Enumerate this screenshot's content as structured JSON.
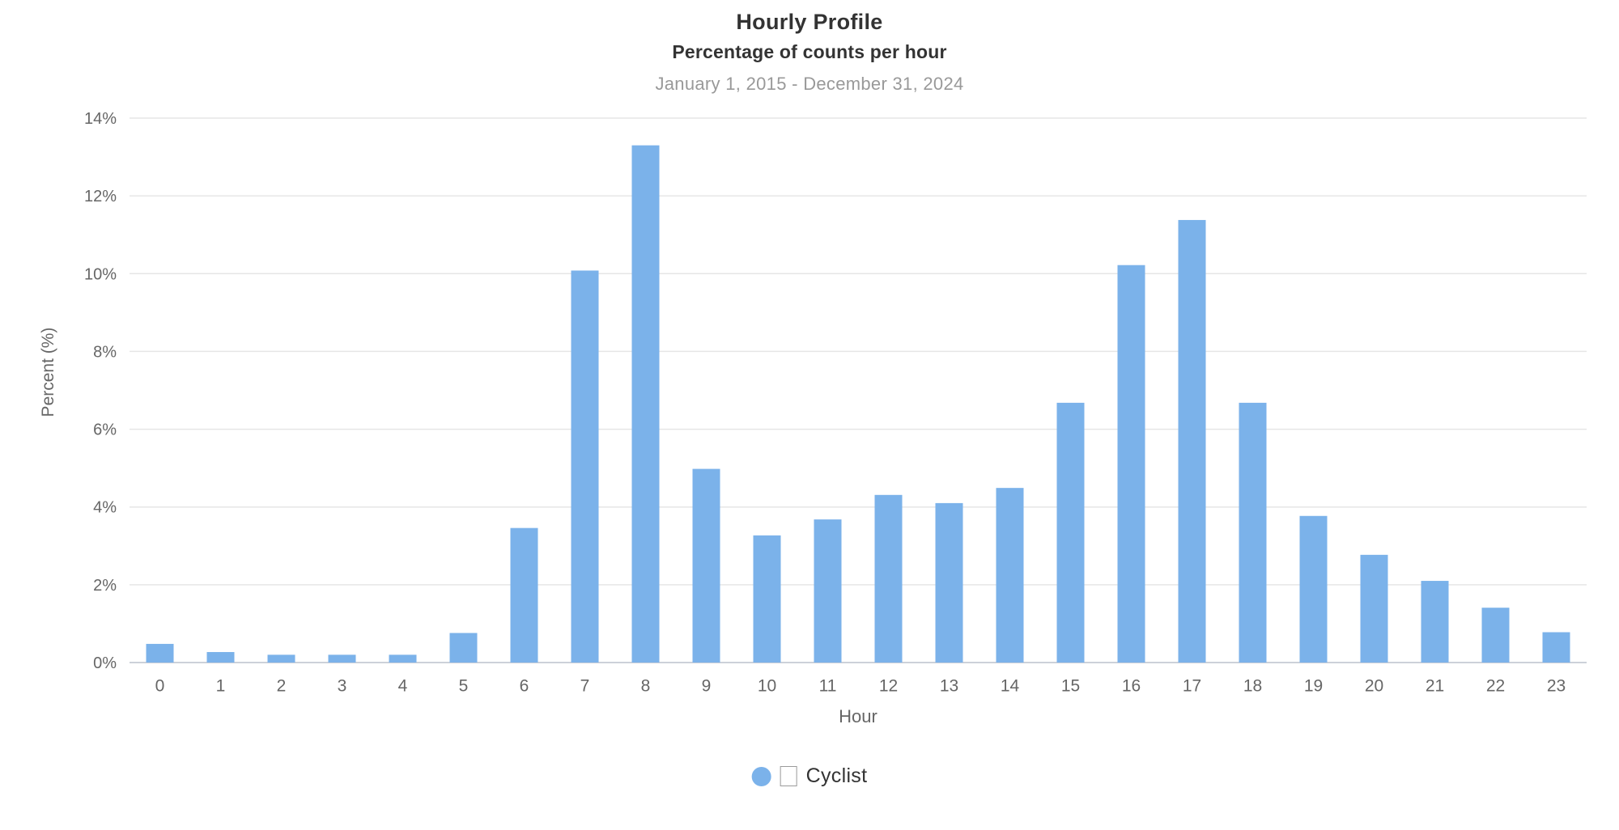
{
  "header": {
    "title": "Hourly Profile",
    "subtitle": "Percentage of counts per hour",
    "date_range": "January 1, 2015 - December 31, 2024"
  },
  "chart_data": {
    "type": "bar",
    "title": "Hourly Profile",
    "subtitle": "Percentage of counts per hour",
    "date_range": "January 1, 2015 - December 31, 2024",
    "categories": [
      "0",
      "1",
      "2",
      "3",
      "4",
      "5",
      "6",
      "7",
      "8",
      "9",
      "10",
      "11",
      "12",
      "13",
      "14",
      "15",
      "16",
      "17",
      "18",
      "19",
      "20",
      "21",
      "22",
      "23"
    ],
    "series": [
      {
        "name": "Cyclist",
        "values": [
          0.48,
          0.27,
          0.2,
          0.2,
          0.2,
          0.76,
          3.46,
          10.08,
          13.3,
          4.98,
          3.27,
          3.68,
          4.31,
          4.1,
          4.49,
          6.68,
          10.22,
          11.38,
          6.68,
          3.77,
          2.77,
          2.1,
          1.41,
          0.78
        ]
      }
    ],
    "xlabel": "Hour",
    "ylabel": "Percent (%)",
    "ylim": [
      0,
      14
    ],
    "ytick_step": 2,
    "ytick_labels": [
      "0%",
      "2%",
      "4%",
      "6%",
      "8%",
      "10%",
      "12%",
      "14%"
    ],
    "grid": true,
    "legend_position": "bottom"
  },
  "legend": {
    "label": "Cyclist",
    "marker_icon": "circle-marker",
    "box_icon": "missing-glyph-box"
  },
  "colors": {
    "bar": "#7bb2ea",
    "grid_line": "#e6e6e6",
    "axis_line": "#ccd1d9",
    "tick_text": "#666666",
    "axis_title_text": "#666666",
    "title_text": "#333333",
    "date_text": "#999999",
    "legend_text": "#333333"
  }
}
